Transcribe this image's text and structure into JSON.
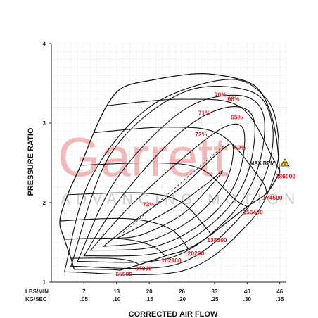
{
  "chart_data": {
    "type": "compressor-map",
    "title": "",
    "xlabel": "CORRECTED AIR FLOW",
    "ylabel": "PRESSURE RATIO",
    "x_unit_labels": [
      "LBS/MIN",
      "KG/SEC"
    ],
    "x_ticks_lbs": [
      "7",
      "13",
      "20",
      "26",
      "33",
      "40",
      "46"
    ],
    "x_ticks_kg": [
      ".05",
      ".10",
      ".15",
      ".20",
      ".25",
      ".30",
      ".35"
    ],
    "x_tick_values_kgs": [
      0.05,
      0.1,
      0.15,
      0.2,
      0.25,
      0.3,
      0.35
    ],
    "y_ticks": [
      "1",
      "2",
      "3",
      "4"
    ],
    "y_tick_values": [
      1,
      2,
      3,
      4
    ],
    "xlim": [
      0.0,
      0.36
    ],
    "ylim": [
      1.0,
      4.0
    ],
    "grid": true,
    "watermark": {
      "main": "Garrett",
      "sub": "ADVANCING MOTION"
    },
    "max_rpm_label": "MAX RPM",
    "speed_lines": [
      {
        "name": "65900",
        "points": [
          [
            0.035,
            1.16
          ],
          [
            0.085,
            1.16
          ],
          [
            0.105,
            1.15
          ]
        ]
      },
      {
        "name": "84000",
        "points": [
          [
            0.03,
            1.3
          ],
          [
            0.09,
            1.3
          ],
          [
            0.12,
            1.27
          ],
          [
            0.135,
            1.22
          ]
        ]
      },
      {
        "name": "102100",
        "points": [
          [
            0.02,
            1.54
          ],
          [
            0.1,
            1.55
          ],
          [
            0.15,
            1.47
          ],
          [
            0.175,
            1.33
          ]
        ]
      },
      {
        "name": "120200",
        "points": [
          [
            0.013,
            1.77
          ],
          [
            0.115,
            1.8
          ],
          [
            0.18,
            1.68
          ],
          [
            0.21,
            1.42
          ]
        ]
      },
      {
        "name": "138300",
        "points": [
          [
            0.025,
            2.1
          ],
          [
            0.14,
            2.12
          ],
          [
            0.2,
            2.0
          ],
          [
            0.245,
            1.6
          ]
        ]
      },
      {
        "name": "156400",
        "points": [
          [
            0.045,
            2.47
          ],
          [
            0.16,
            2.5
          ],
          [
            0.23,
            2.42
          ],
          [
            0.28,
            2.05
          ],
          [
            0.3,
            1.95
          ]
        ]
      },
      {
        "name": "174500",
        "points": [
          [
            0.065,
            2.88
          ],
          [
            0.18,
            2.95
          ],
          [
            0.26,
            2.85
          ],
          [
            0.32,
            2.3
          ],
          [
            0.33,
            2.12
          ]
        ]
      },
      {
        "name": "186000",
        "points": [
          [
            0.085,
            3.22
          ],
          [
            0.2,
            3.3
          ],
          [
            0.29,
            3.2
          ],
          [
            0.34,
            2.55
          ],
          [
            0.35,
            2.38
          ]
        ]
      }
    ],
    "efficiency_labels": [
      "73%",
      "72%",
      "71%",
      "70%",
      "68%",
      "65%",
      "60%"
    ],
    "efficiency_islands": [
      {
        "name": "73%",
        "points": [
          [
            0.1,
            1.55
          ],
          [
            0.14,
            1.6
          ],
          [
            0.2,
            1.85
          ],
          [
            0.245,
            2.22
          ],
          [
            0.262,
            2.4
          ],
          [
            0.24,
            2.25
          ],
          [
            0.19,
            1.95
          ],
          [
            0.14,
            1.72
          ],
          [
            0.1,
            1.55
          ]
        ]
      },
      {
        "name": "72%",
        "points": [
          [
            0.08,
            1.45
          ],
          [
            0.15,
            1.52
          ],
          [
            0.22,
            1.82
          ],
          [
            0.268,
            2.28
          ],
          [
            0.278,
            2.72
          ],
          [
            0.255,
            2.62
          ],
          [
            0.2,
            2.2
          ],
          [
            0.14,
            1.85
          ],
          [
            0.08,
            1.45
          ]
        ]
      },
      {
        "name": "71%",
        "points": [
          [
            0.06,
            1.4
          ],
          [
            0.16,
            1.45
          ],
          [
            0.24,
            1.8
          ],
          [
            0.285,
            2.3
          ],
          [
            0.295,
            2.9
          ],
          [
            0.265,
            2.95
          ],
          [
            0.2,
            2.55
          ],
          [
            0.12,
            1.95
          ],
          [
            0.06,
            1.4
          ]
        ]
      },
      {
        "name": "70%",
        "points": [
          [
            0.05,
            1.33
          ],
          [
            0.17,
            1.38
          ],
          [
            0.255,
            1.8
          ],
          [
            0.3,
            2.35
          ],
          [
            0.31,
            3.05
          ],
          [
            0.27,
            3.2
          ],
          [
            0.2,
            2.9
          ],
          [
            0.11,
            2.1
          ],
          [
            0.05,
            1.33
          ]
        ]
      },
      {
        "name": "68%",
        "points": [
          [
            0.04,
            1.26
          ],
          [
            0.18,
            1.3
          ],
          [
            0.27,
            1.8
          ],
          [
            0.315,
            2.4
          ],
          [
            0.325,
            3.1
          ],
          [
            0.285,
            3.35
          ],
          [
            0.2,
            3.15
          ],
          [
            0.1,
            2.3
          ],
          [
            0.04,
            1.26
          ]
        ]
      },
      {
        "name": "65%",
        "points": [
          [
            0.03,
            1.2
          ],
          [
            0.19,
            1.22
          ],
          [
            0.285,
            1.78
          ],
          [
            0.33,
            2.4
          ],
          [
            0.338,
            3.0
          ],
          [
            0.305,
            3.4
          ],
          [
            0.2,
            3.38
          ],
          [
            0.09,
            2.6
          ],
          [
            0.03,
            1.2
          ]
        ]
      },
      {
        "name": "60%",
        "points": [
          [
            0.02,
            1.13
          ],
          [
            0.2,
            1.14
          ],
          [
            0.3,
            1.72
          ],
          [
            0.34,
            2.3
          ],
          [
            0.348,
            2.8
          ],
          [
            0.33,
            3.3
          ],
          [
            0.27,
            3.55
          ],
          [
            0.15,
            3.2
          ],
          [
            0.06,
            2.3
          ],
          [
            0.02,
            1.13
          ]
        ]
      }
    ],
    "surge_line": [
      [
        0.035,
        1.16
      ],
      [
        0.03,
        1.3
      ],
      [
        0.02,
        1.54
      ],
      [
        0.013,
        1.77
      ],
      [
        0.025,
        2.1
      ],
      [
        0.045,
        2.47
      ],
      [
        0.065,
        2.88
      ],
      [
        0.085,
        3.22
      ],
      [
        0.11,
        3.45
      ],
      [
        0.16,
        3.55
      ],
      [
        0.22,
        3.62
      ],
      [
        0.26,
        3.6
      ],
      [
        0.3,
        3.52
      ],
      [
        0.32,
        3.4
      ],
      [
        0.335,
        3.15
      ],
      [
        0.345,
        2.8
      ],
      [
        0.35,
        2.38
      ]
    ],
    "choke_line": [
      [
        0.105,
        1.15
      ],
      [
        0.135,
        1.22
      ],
      [
        0.175,
        1.33
      ],
      [
        0.21,
        1.42
      ],
      [
        0.245,
        1.6
      ],
      [
        0.3,
        1.95
      ],
      [
        0.33,
        2.12
      ],
      [
        0.35,
        2.38
      ]
    ]
  }
}
